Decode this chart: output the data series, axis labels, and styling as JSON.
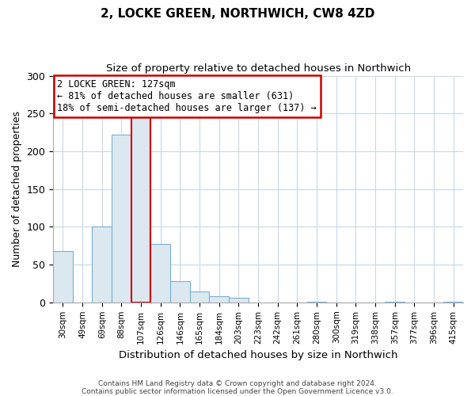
{
  "title": "2, LOCKE GREEN, NORTHWICH, CW8 4ZD",
  "subtitle": "Size of property relative to detached houses in Northwich",
  "xlabel": "Distribution of detached houses by size in Northwich",
  "ylabel": "Number of detached properties",
  "footer_line1": "Contains HM Land Registry data © Crown copyright and database right 2024.",
  "footer_line2": "Contains public sector information licensed under the Open Government Licence v3.0.",
  "bar_labels": [
    "30sqm",
    "49sqm",
    "69sqm",
    "88sqm",
    "107sqm",
    "126sqm",
    "146sqm",
    "165sqm",
    "184sqm",
    "203sqm",
    "223sqm",
    "242sqm",
    "261sqm",
    "280sqm",
    "300sqm",
    "319sqm",
    "338sqm",
    "357sqm",
    "377sqm",
    "396sqm",
    "415sqm"
  ],
  "bar_values": [
    68,
    0,
    100,
    222,
    245,
    77,
    28,
    14,
    8,
    6,
    0,
    0,
    0,
    1,
    0,
    0,
    0,
    1,
    0,
    0,
    1
  ],
  "bar_color": "#dce8f0",
  "bar_edge_color": "#7ab0d4",
  "highlight_bar_index": 4,
  "highlight_bar_edge_color": "#cc0000",
  "highlight_line_color": "#cc0000",
  "annotation_title": "2 LOCKE GREEN: 127sqm",
  "annotation_line1": "← 81% of detached houses are smaller (631)",
  "annotation_line2": "18% of semi-detached houses are larger (137) →",
  "annotation_box_edge_color": "#cc0000",
  "annotation_box_face_color": "#ffffff",
  "ylim": [
    0,
    300
  ],
  "yticks": [
    0,
    50,
    100,
    150,
    200,
    250,
    300
  ],
  "background_color": "#ffffff",
  "grid_color": "#c8d8e8"
}
